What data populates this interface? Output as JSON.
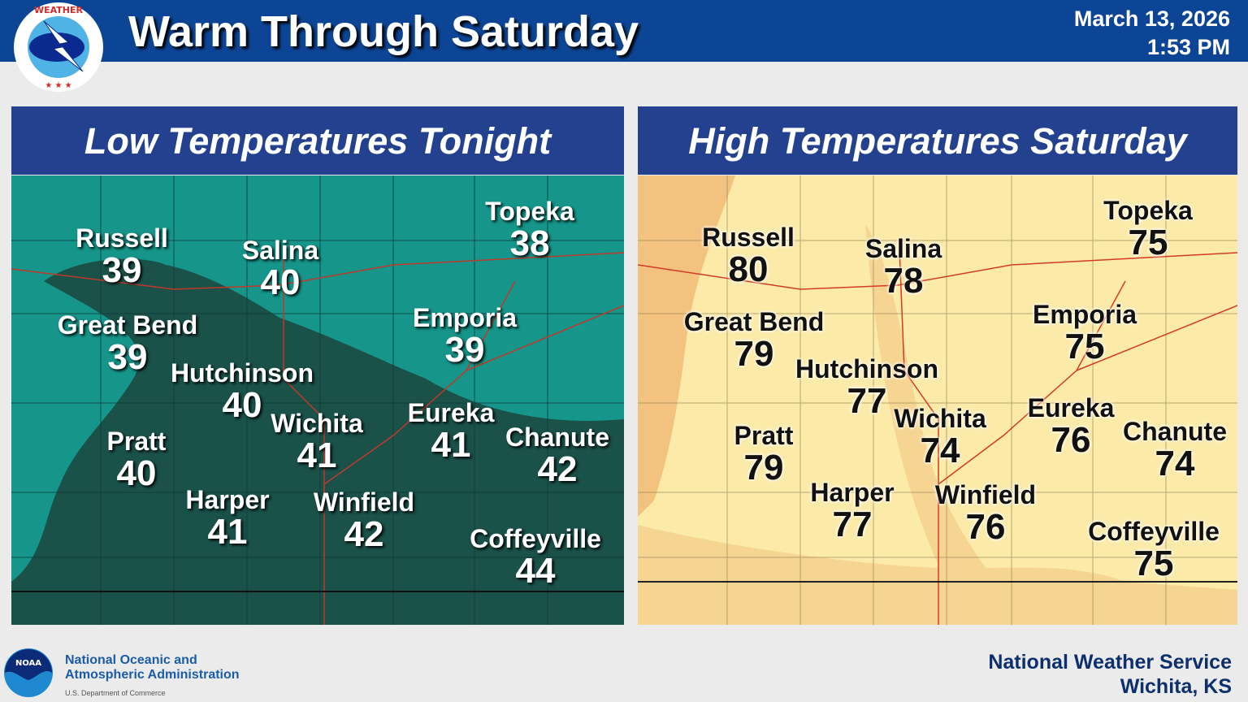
{
  "header": {
    "title": "Warm Through Saturday",
    "date": "March 13, 2026",
    "time": "1:53 PM",
    "logo_text": "NATIONAL WEATHER SERVICE"
  },
  "colors": {
    "header": "#0d4596",
    "panel_title": "#23418f",
    "low_light": "#16958a",
    "low_dark": "#1a5149",
    "high_light": "#fbeaa8",
    "high_orange": "#f2c27e"
  },
  "low_panel": {
    "title": "Low Temperatures Tonight",
    "cities": [
      {
        "name": "Russell",
        "value": "39"
      },
      {
        "name": "Salina",
        "value": "40"
      },
      {
        "name": "Topeka",
        "value": "38"
      },
      {
        "name": "Great Bend",
        "value": "39"
      },
      {
        "name": "Emporia",
        "value": "39"
      },
      {
        "name": "Hutchinson",
        "value": "40"
      },
      {
        "name": "Wichita",
        "value": "41"
      },
      {
        "name": "Eureka",
        "value": "41"
      },
      {
        "name": "Chanute",
        "value": "42"
      },
      {
        "name": "Pratt",
        "value": "40"
      },
      {
        "name": "Harper",
        "value": "41"
      },
      {
        "name": "Winfield",
        "value": "42"
      },
      {
        "name": "Coffeyville",
        "value": "44"
      }
    ]
  },
  "high_panel": {
    "title": "High Temperatures Saturday",
    "cities": [
      {
        "name": "Russell",
        "value": "80"
      },
      {
        "name": "Salina",
        "value": "78"
      },
      {
        "name": "Topeka",
        "value": "75"
      },
      {
        "name": "Great Bend",
        "value": "79"
      },
      {
        "name": "Emporia",
        "value": "75"
      },
      {
        "name": "Hutchinson",
        "value": "77"
      },
      {
        "name": "Wichita",
        "value": "74"
      },
      {
        "name": "Eureka",
        "value": "76"
      },
      {
        "name": "Chanute",
        "value": "74"
      },
      {
        "name": "Pratt",
        "value": "79"
      },
      {
        "name": "Harper",
        "value": "77"
      },
      {
        "name": "Winfield",
        "value": "76"
      },
      {
        "name": "Coffeyville",
        "value": "75"
      }
    ]
  },
  "footer": {
    "noaa_line1": "National Oceanic and",
    "noaa_line2": "Atmospheric Administration",
    "noaa_dept": "U.S. Department of Commerce",
    "noaa_logo_text": "NOAA",
    "office_line1": "National Weather Service",
    "office_line2": "Wichita, KS"
  }
}
